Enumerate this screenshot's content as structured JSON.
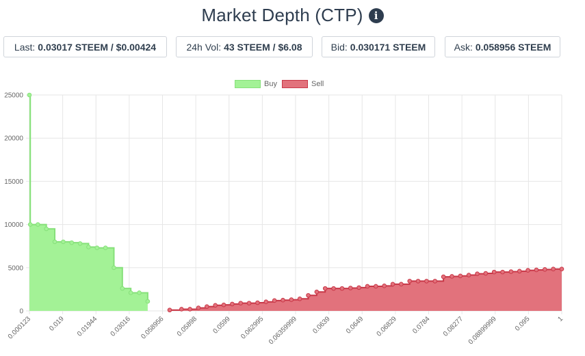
{
  "header": {
    "title": "Market Depth (CTP)",
    "info_icon": "info-circle-icon"
  },
  "stats": {
    "last": {
      "label": "Last:",
      "value": "0.03017 STEEM / $0.00424"
    },
    "vol": {
      "label": "24h Vol:",
      "value": "43 STEEM / $6.08"
    },
    "bid": {
      "label": "Bid:",
      "value": "0.030171 STEEM"
    },
    "ask": {
      "label": "Ask:",
      "value": "0.058956 STEEM"
    }
  },
  "colors": {
    "buy_fill": "#a3f296",
    "buy_line": "#86e07a",
    "sell_fill": "#e2727c",
    "sell_line": "#c83747"
  },
  "chart_data": {
    "type": "area",
    "step": true,
    "legend_position": "top",
    "grid": true,
    "ylim": [
      0,
      25000
    ],
    "y_ticks": [
      "0",
      "5000",
      "10000",
      "15000",
      "20000",
      "25000"
    ],
    "x_tick_labels": [
      "0.000123",
      "0.019",
      "0.01944",
      "0.03016",
      "0.058956",
      "0.05898",
      "0.0599",
      "0.062995",
      "0.06359999",
      "0.0639",
      "0.0649",
      "0.06829",
      "0.0784",
      "0.08277",
      "0.08899999",
      "0.095",
      "1"
    ],
    "series": [
      {
        "name": "Buy",
        "points": [
          {
            "x": 0,
            "y": 25000
          },
          {
            "x": 0.1,
            "y": 10000
          },
          {
            "x": 1,
            "y": 10000
          },
          {
            "x": 2,
            "y": 9500
          },
          {
            "x": 3,
            "y": 8000
          },
          {
            "x": 4,
            "y": 8000
          },
          {
            "x": 5,
            "y": 7900
          },
          {
            "x": 6,
            "y": 7800
          },
          {
            "x": 7,
            "y": 7400
          },
          {
            "x": 8,
            "y": 7300
          },
          {
            "x": 9,
            "y": 7300
          },
          {
            "x": 10,
            "y": 5000
          },
          {
            "x": 11,
            "y": 2600
          },
          {
            "x": 12,
            "y": 2100
          },
          {
            "x": 13,
            "y": 2100
          },
          {
            "x": 14,
            "y": 1100
          }
        ]
      },
      {
        "name": "Sell",
        "points": [
          {
            "x": 16.6,
            "y": 100
          },
          {
            "x": 18,
            "y": 200
          },
          {
            "x": 19,
            "y": 200
          },
          {
            "x": 20,
            "y": 350
          },
          {
            "x": 21,
            "y": 500
          },
          {
            "x": 22,
            "y": 650
          },
          {
            "x": 23,
            "y": 700
          },
          {
            "x": 24,
            "y": 800
          },
          {
            "x": 25,
            "y": 900
          },
          {
            "x": 26,
            "y": 900
          },
          {
            "x": 27,
            "y": 950
          },
          {
            "x": 28,
            "y": 1050
          },
          {
            "x": 29,
            "y": 1200
          },
          {
            "x": 30,
            "y": 1250
          },
          {
            "x": 31,
            "y": 1300
          },
          {
            "x": 32,
            "y": 1400
          },
          {
            "x": 33,
            "y": 1800
          },
          {
            "x": 34,
            "y": 2200
          },
          {
            "x": 35,
            "y": 2600
          },
          {
            "x": 36,
            "y": 2600
          },
          {
            "x": 37,
            "y": 2600
          },
          {
            "x": 38,
            "y": 2650
          },
          {
            "x": 39,
            "y": 2700
          },
          {
            "x": 40,
            "y": 2850
          },
          {
            "x": 41,
            "y": 2850
          },
          {
            "x": 42,
            "y": 2900
          },
          {
            "x": 43,
            "y": 3100
          },
          {
            "x": 44,
            "y": 3100
          },
          {
            "x": 45,
            "y": 3450
          },
          {
            "x": 46,
            "y": 3450
          },
          {
            "x": 47,
            "y": 3450
          },
          {
            "x": 48,
            "y": 3450
          },
          {
            "x": 49,
            "y": 3950
          },
          {
            "x": 50,
            "y": 4000
          },
          {
            "x": 51,
            "y": 4050
          },
          {
            "x": 52,
            "y": 4150
          },
          {
            "x": 53,
            "y": 4300
          },
          {
            "x": 54,
            "y": 4350
          },
          {
            "x": 55,
            "y": 4500
          },
          {
            "x": 56,
            "y": 4500
          },
          {
            "x": 57,
            "y": 4550
          },
          {
            "x": 58,
            "y": 4600
          },
          {
            "x": 59,
            "y": 4700
          },
          {
            "x": 60,
            "y": 4750
          },
          {
            "x": 61,
            "y": 4800
          },
          {
            "x": 62,
            "y": 4850
          },
          {
            "x": 63,
            "y": 4850
          }
        ]
      }
    ]
  }
}
